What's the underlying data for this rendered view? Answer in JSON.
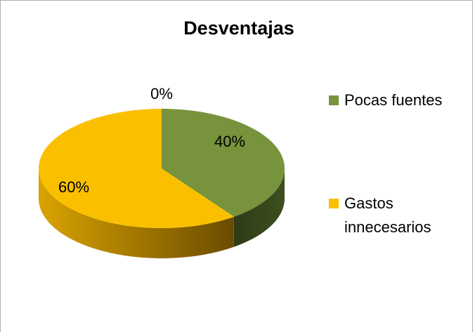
{
  "chart_data": {
    "type": "pie",
    "title": "Desventajas",
    "categories": [
      "Pocas fuentes",
      "Gastos innecesarios",
      null
    ],
    "values": [
      40,
      60,
      0
    ],
    "value_labels": [
      "40%",
      "60%",
      "0%"
    ],
    "colors": [
      "#77933c",
      "#fac000"
    ],
    "legend": "right"
  }
}
